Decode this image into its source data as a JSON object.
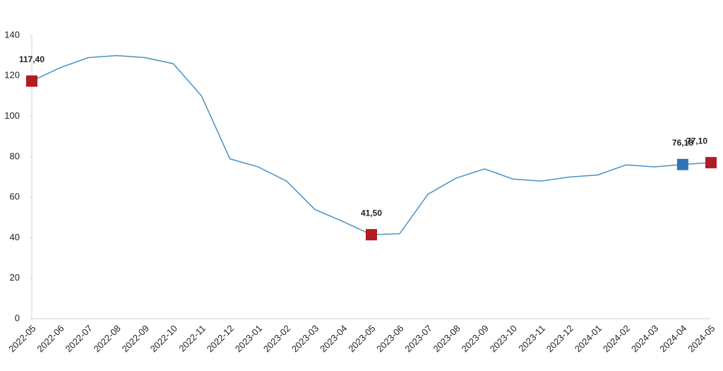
{
  "chart_data": {
    "type": "line",
    "categories": [
      "2022-05",
      "2022-06",
      "2022-07",
      "2022-08",
      "2022-09",
      "2022-10",
      "2022-11",
      "2022-12",
      "2023-01",
      "2023-02",
      "2023-03",
      "2023-04",
      "2023-05",
      "2023-06",
      "2023-07",
      "2023-08",
      "2023-09",
      "2023-10",
      "2023-11",
      "2023-12",
      "2024-01",
      "2024-02",
      "2024-03",
      "2024-04",
      "2024-05"
    ],
    "values": [
      117.4,
      124,
      129,
      130,
      129,
      126,
      110,
      79,
      75,
      68,
      54,
      48,
      41.5,
      42,
      61.5,
      69.5,
      74,
      69,
      68,
      70,
      71,
      76,
      75,
      76.18,
      77.1
    ],
    "value_labels": [
      "117,40",
      null,
      null,
      null,
      null,
      null,
      null,
      null,
      null,
      null,
      null,
      null,
      "41,50",
      null,
      null,
      null,
      null,
      null,
      null,
      null,
      null,
      null,
      null,
      "76,18",
      "77,10"
    ],
    "marker_colors": [
      "#b01c24",
      null,
      null,
      null,
      null,
      null,
      null,
      null,
      null,
      null,
      null,
      null,
      "#b01c24",
      null,
      null,
      null,
      null,
      null,
      null,
      null,
      null,
      null,
      null,
      "#2e75b6",
      "#b01c24"
    ],
    "color": "#4a90c4",
    "ylim": [
      0,
      140
    ],
    "yticks": [
      0,
      20,
      40,
      60,
      80,
      100,
      120,
      140
    ],
    "grid": false
  }
}
